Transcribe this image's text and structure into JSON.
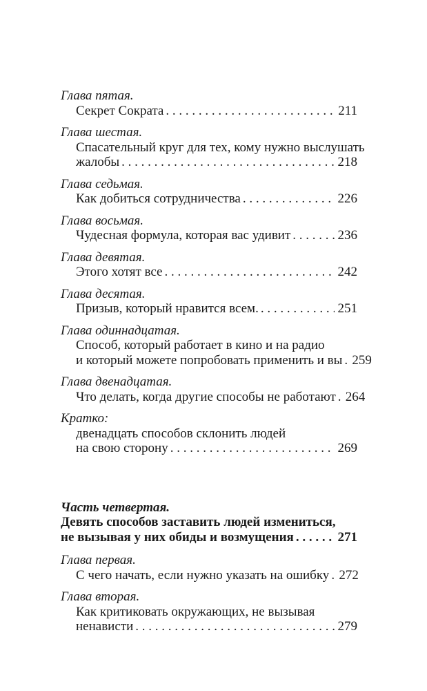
{
  "page": {
    "background": "#ffffff",
    "text_color": "#1b1b1b"
  },
  "toc": {
    "entries": [
      {
        "heading": "Глава пятая.",
        "lines": [
          "Секрет Сократа"
        ],
        "page": "211"
      },
      {
        "heading": "Глава шестая.",
        "lines": [
          "Спасательный круг для тех, кому нужно выслушать",
          "жалобы"
        ],
        "page": "218"
      },
      {
        "heading": "Глава седьмая.",
        "lines": [
          "Как добиться сотрудничества"
        ],
        "page": "226"
      },
      {
        "heading": "Глава восьмая.",
        "lines": [
          "Чудесная формула, которая вас удивит"
        ],
        "page": "236"
      },
      {
        "heading": "Глава девятая.",
        "lines": [
          "Этого хотят все"
        ],
        "page": "242"
      },
      {
        "heading": "Глава десятая.",
        "lines": [
          "Призыв, который нравится всем."
        ],
        "page": "251"
      },
      {
        "heading": "Глава одиннадцатая.",
        "lines": [
          "Способ, который работает в кино и на радио",
          "и который можете попробовать применить и вы"
        ],
        "page": "259"
      },
      {
        "heading": "Глава двенадцатая.",
        "lines": [
          "Что делать, когда другие способы не работают"
        ],
        "page": "264"
      },
      {
        "heading": "Кратко:",
        "lines": [
          "двенадцать способов склонить людей",
          "на свою сторону"
        ],
        "page": "269"
      },
      {
        "heading": "Глава первая.",
        "lines": [
          "С чего начать, если нужно указать на ошибку"
        ],
        "page": "272"
      },
      {
        "heading": "Глава вторая.",
        "lines": [
          "Как критиковать окружающих, не вызывая",
          "ненависти"
        ],
        "page": "279"
      }
    ],
    "part": {
      "heading": "Часть четвертая.",
      "lines": [
        "Девять способов заставить людей измениться,",
        "не вызывая у них обиды и возмущения"
      ],
      "page": "271"
    }
  }
}
